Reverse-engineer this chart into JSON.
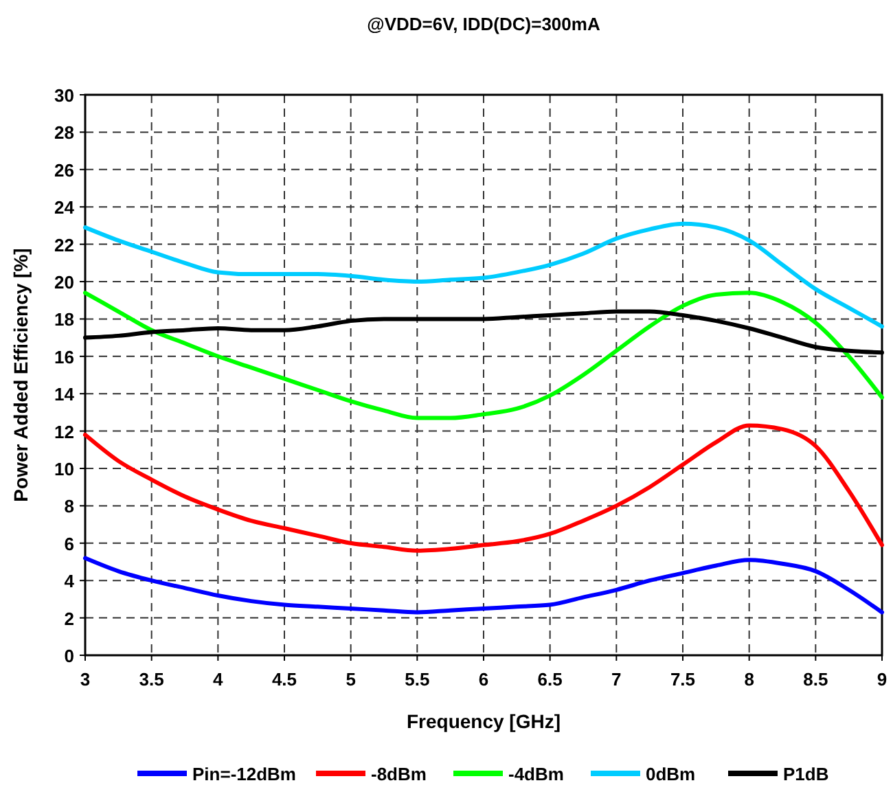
{
  "chart_data": {
    "type": "line",
    "title": "@VDD=6V, IDD(DC)=300mA",
    "xlabel": "Frequency  [GHz]",
    "ylabel": "Power Added Efficiency  [%]",
    "x": [
      3,
      3.25,
      3.5,
      3.75,
      4,
      4.25,
      4.5,
      4.75,
      5,
      5.25,
      5.5,
      5.75,
      6,
      6.25,
      6.5,
      6.75,
      7,
      7.25,
      7.5,
      7.75,
      8,
      8.25,
      8.5,
      8.75,
      9
    ],
    "series": [
      {
        "name": "Pin=-12dBm",
        "color": "#0000ff",
        "values": [
          5.2,
          4.5,
          4.0,
          3.6,
          3.2,
          2.9,
          2.7,
          2.6,
          2.5,
          2.4,
          2.3,
          2.4,
          2.5,
          2.6,
          2.7,
          3.1,
          3.5,
          4.0,
          4.4,
          4.8,
          5.1,
          4.9,
          4.5,
          3.5,
          2.3
        ]
      },
      {
        "name": "-8dBm",
        "color": "#ff0000",
        "values": [
          11.8,
          10.4,
          9.4,
          8.5,
          7.8,
          7.2,
          6.8,
          6.4,
          6.0,
          5.8,
          5.6,
          5.7,
          5.9,
          6.1,
          6.5,
          7.2,
          8.0,
          9.0,
          10.2,
          11.4,
          12.3,
          12.1,
          11.2,
          8.8,
          5.9
        ]
      },
      {
        "name": "-4dBm",
        "color": "#00ff00",
        "values": [
          19.4,
          18.4,
          17.4,
          16.7,
          16.0,
          15.4,
          14.8,
          14.2,
          13.6,
          13.1,
          12.7,
          12.7,
          12.9,
          13.2,
          13.9,
          15.0,
          16.3,
          17.6,
          18.7,
          19.3,
          19.4,
          18.9,
          17.8,
          16.0,
          13.8
        ]
      },
      {
        "name": "0dBm",
        "color": "#00ccff",
        "values": [
          22.9,
          22.2,
          21.6,
          21.0,
          20.5,
          20.4,
          20.4,
          20.4,
          20.3,
          20.1,
          20.0,
          20.1,
          20.2,
          20.5,
          20.9,
          21.5,
          22.3,
          22.8,
          23.1,
          22.9,
          22.2,
          20.9,
          19.6,
          18.6,
          17.6
        ]
      },
      {
        "name": "P1dB",
        "color": "#000000",
        "values": [
          17.0,
          17.1,
          17.3,
          17.4,
          17.5,
          17.4,
          17.4,
          17.6,
          17.9,
          18.0,
          18.0,
          18.0,
          18.0,
          18.1,
          18.2,
          18.3,
          18.4,
          18.4,
          18.2,
          17.9,
          17.5,
          17.0,
          16.5,
          16.3,
          16.2
        ]
      }
    ],
    "xlim": [
      3,
      9
    ],
    "xticks": [
      3,
      3.5,
      4,
      4.5,
      5,
      5.5,
      6,
      6.5,
      7,
      7.5,
      8,
      8.5,
      9
    ],
    "ylim": [
      0,
      30
    ],
    "yticks": [
      0,
      2,
      4,
      6,
      8,
      10,
      12,
      14,
      16,
      18,
      20,
      22,
      24,
      26,
      28,
      30
    ],
    "grid": true,
    "legend": "bottom",
    "marker": "none",
    "line_style": "solid"
  }
}
